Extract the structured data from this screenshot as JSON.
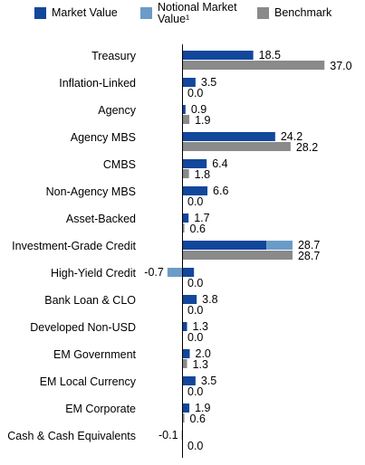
{
  "colors": {
    "market_value": "#12479b",
    "notional_market_value": "#6a9cc8",
    "benchmark": "#8a8a8a",
    "axis": "#000000"
  },
  "legend": [
    {
      "key": "market_value",
      "label": "Market Value"
    },
    {
      "key": "notional_market_value",
      "label": "Notional Market Value¹"
    },
    {
      "key": "benchmark",
      "label": "Benchmark"
    }
  ],
  "chart_data": {
    "type": "bar",
    "orientation": "horizontal",
    "title": "",
    "xlabel": "",
    "ylabel": "",
    "grid": false,
    "legend_position": "top",
    "categories": [
      "Treasury",
      "Inflation-Linked",
      "Agency",
      "Agency MBS",
      "CMBS",
      "Non-Agency MBS",
      "Asset-Backed",
      "Investment-Grade Credit",
      "High-Yield Credit",
      "Bank Loan & CLO",
      "Developed Non-USD",
      "EM Government",
      "EM Local Currency",
      "EM Corporate",
      "Cash & Cash Equivalents"
    ],
    "portfolio": {
      "labels": [
        "18.5",
        "3.5",
        "0.9",
        "24.2",
        "6.4",
        "6.6",
        "1.7",
        "28.7",
        "-0.7",
        "3.8",
        "1.3",
        "2.0",
        "3.5",
        "1.9",
        "-0.1"
      ],
      "values": [
        18.5,
        3.5,
        0.9,
        24.2,
        6.4,
        6.6,
        1.7,
        28.7,
        -0.7,
        3.8,
        1.3,
        2.0,
        3.5,
        1.9,
        -0.1
      ],
      "market_value": [
        18.5,
        3.5,
        0.9,
        24.2,
        6.4,
        6.6,
        1.7,
        21.9,
        3.1,
        3.8,
        1.3,
        2.0,
        3.5,
        1.9,
        0.0
      ],
      "notional_market_value": [
        0,
        0,
        0,
        0,
        0,
        0,
        0,
        6.8,
        -3.8,
        0,
        0,
        0,
        0,
        0,
        -0.1
      ]
    },
    "benchmark": {
      "labels": [
        "37.0",
        "0.0",
        "1.9",
        "28.2",
        "1.8",
        "0.0",
        "0.6",
        "28.7",
        "0.0",
        "0.0",
        "0.0",
        "1.3",
        "0.0",
        "0.6",
        "0.0"
      ],
      "values": [
        37.0,
        0.0,
        1.9,
        28.2,
        1.8,
        0.0,
        0.6,
        28.7,
        0.0,
        0.0,
        0.0,
        1.3,
        0.0,
        0.6,
        0.0
      ]
    }
  }
}
